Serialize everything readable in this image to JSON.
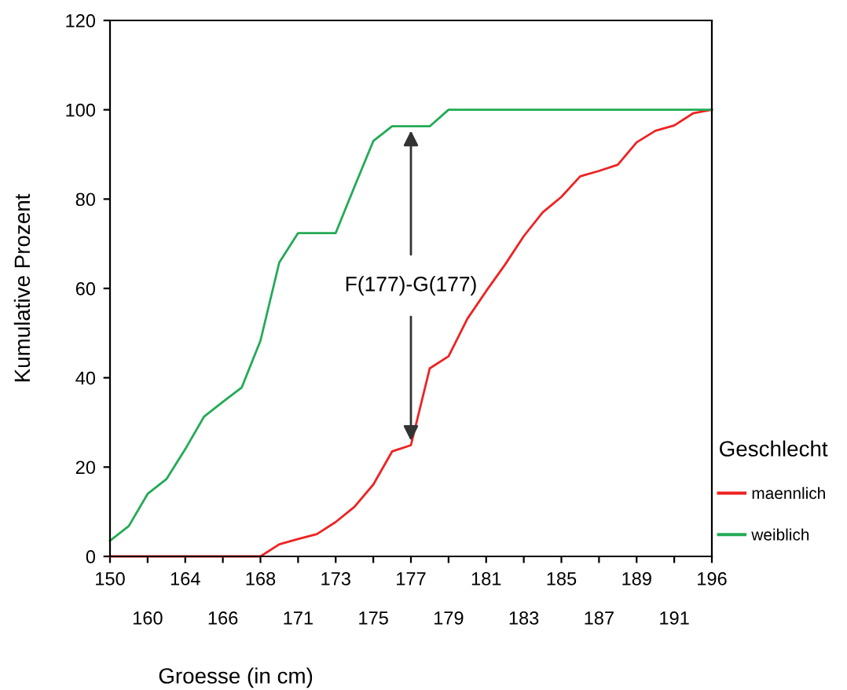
{
  "chart_data": {
    "type": "line",
    "xlabel": "Groesse (in cm)",
    "ylabel": "Kumulative Prozent",
    "legend_title": "Geschlecht",
    "categories": [
      "150",
      null,
      "160",
      null,
      "164",
      null,
      "166",
      null,
      "168",
      null,
      "171",
      null,
      "173",
      null,
      "175",
      null,
      "177",
      null,
      "179",
      null,
      "181",
      null,
      "183",
      null,
      "185",
      null,
      "187",
      null,
      "189",
      null,
      "191",
      null,
      "196"
    ],
    "series": [
      {
        "name": "maennlich",
        "color": "#ee2222",
        "values": [
          0,
          0,
          0,
          0,
          0,
          0,
          0,
          0,
          0,
          2.7,
          3.9,
          5.0,
          7.7,
          11.1,
          16.1,
          23.5,
          24.9,
          42.1,
          44.8,
          53.2,
          59.4,
          65.3,
          71.7,
          77.0,
          80.5,
          85.1,
          86.3,
          87.7,
          92.7,
          95.3,
          96.5,
          99.2,
          100
        ]
      },
      {
        "name": "weiblich",
        "color": "#22aa55",
        "values": [
          3.5,
          6.8,
          14.0,
          17.3,
          24.0,
          31.3,
          34.6,
          37.8,
          48.3,
          65.8,
          72.4,
          72.4,
          72.4,
          82.8,
          93.0,
          96.3,
          96.3,
          96.3,
          100,
          100,
          100,
          100,
          100,
          100,
          100,
          100,
          100,
          100,
          100,
          100,
          100,
          100,
          100
        ]
      }
    ],
    "annotations": [
      {
        "text": "F(177)-G(177)",
        "x": "177",
        "y": 96.3
      }
    ],
    "ylim": [
      0,
      120
    ],
    "yticks": [
      0,
      20,
      40,
      60,
      80,
      100,
      120
    ],
    "grid": false,
    "legend": "right",
    "marker": "none",
    "line_style": "solid"
  }
}
